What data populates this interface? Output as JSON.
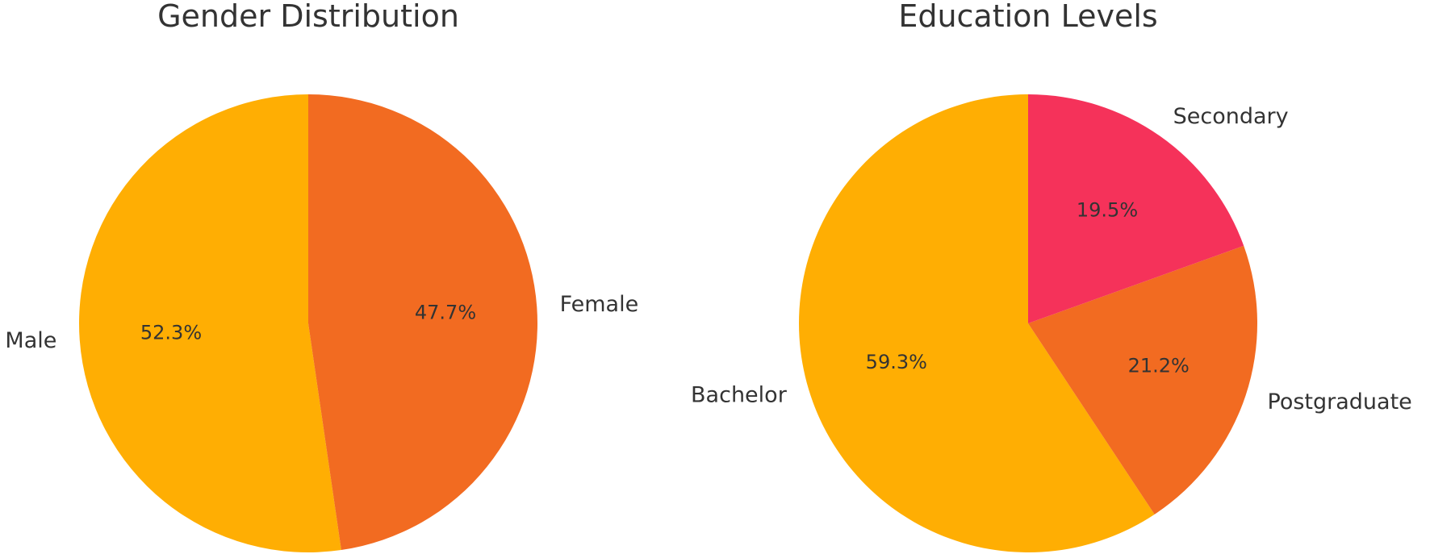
{
  "chart_data": [
    {
      "type": "pie",
      "title": "Gender Distribution",
      "startangle": 90,
      "direction": "counterclockwise",
      "slices": [
        {
          "label": "Male",
          "value": 52.3,
          "pct_label": "52.3%",
          "color": "#FFAE03"
        },
        {
          "label": "Female",
          "value": 47.7,
          "pct_label": "47.7%",
          "color": "#F26B21"
        }
      ]
    },
    {
      "type": "pie",
      "title": "Education Levels",
      "startangle": 90,
      "direction": "counterclockwise",
      "slices": [
        {
          "label": "Bachelor",
          "value": 59.3,
          "pct_label": "59.3%",
          "color": "#FFAE03"
        },
        {
          "label": "Postgraduate",
          "value": 21.2,
          "pct_label": "21.2%",
          "color": "#F26B21"
        },
        {
          "label": "Secondary",
          "value": 19.5,
          "pct_label": "19.5%",
          "color": "#F5325A"
        }
      ]
    }
  ]
}
